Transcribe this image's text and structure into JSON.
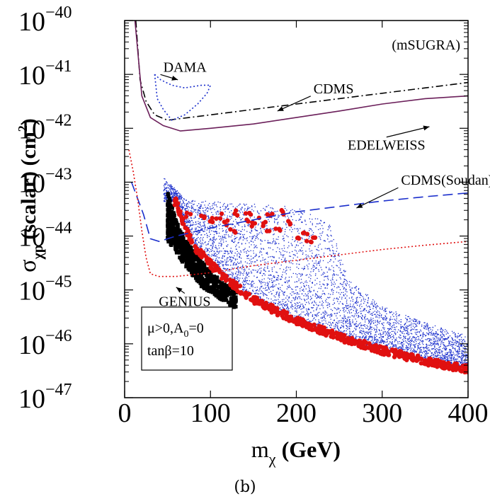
{
  "chart_data": {
    "type": "scatter",
    "panel_label": "(b)",
    "model_label": "(mSUGRA)",
    "xlabel": {
      "main": "m",
      "sub": "χ",
      "unit": " (GeV)"
    },
    "ylabel": {
      "main": "σ",
      "sub": "χp",
      "unit": " (scalar) (cm",
      "unit_sup": "2",
      "close": ")"
    },
    "xlim": [
      0,
      400
    ],
    "ylim_log10": [
      -47,
      -40
    ],
    "x_ticks": [
      0,
      100,
      200,
      300,
      400
    ],
    "x_tick_labels": [
      "0",
      "100",
      "200",
      "300",
      "400"
    ],
    "y_ticks": [
      -47,
      -46,
      -45,
      -44,
      -43,
      -42,
      -41,
      -40
    ],
    "y_tick_labels": [
      {
        "base": "10",
        "exp": "−47"
      },
      {
        "base": "10",
        "exp": "−46"
      },
      {
        "base": "10",
        "exp": "−45"
      },
      {
        "base": "10",
        "exp": "−44"
      },
      {
        "base": "10",
        "exp": "−43"
      },
      {
        "base": "10",
        "exp": "−42"
      },
      {
        "base": "10",
        "exp": "−41"
      },
      {
        "base": "10",
        "exp": "−40"
      }
    ],
    "legend_box": {
      "line1_mu": "μ>0,A",
      "line1_sub": "0",
      "line1_end": "=0",
      "line2": "tanβ=10"
    },
    "curves": [
      {
        "name": "CDMS",
        "color": "#000000",
        "dash": "dashdot",
        "points": [
          [
            13,
            -40.0
          ],
          [
            18,
            -41.1
          ],
          [
            25,
            -41.5
          ],
          [
            35,
            -41.75
          ],
          [
            50,
            -41.85
          ],
          [
            65,
            -41.82
          ],
          [
            100,
            -41.75
          ],
          [
            150,
            -41.65
          ],
          [
            200,
            -41.55
          ],
          [
            250,
            -41.45
          ],
          [
            300,
            -41.35
          ],
          [
            350,
            -41.25
          ],
          [
            400,
            -41.15
          ]
        ]
      },
      {
        "name": "EDELWEISS",
        "color": "#6b1f5a",
        "dash": "solid",
        "points": [
          [
            12,
            -40.0
          ],
          [
            20,
            -41.4
          ],
          [
            30,
            -41.8
          ],
          [
            45,
            -41.95
          ],
          [
            65,
            -42.05
          ],
          [
            100,
            -42.0
          ],
          [
            150,
            -41.92
          ],
          [
            200,
            -41.8
          ],
          [
            250,
            -41.68
          ],
          [
            300,
            -41.55
          ],
          [
            350,
            -41.45
          ],
          [
            400,
            -41.4
          ]
        ]
      },
      {
        "name": "CDMS(Soudan)",
        "color": "#1a2ecc",
        "dash": "longdash",
        "points": [
          [
            8,
            -43.0
          ],
          [
            15,
            -43.3
          ],
          [
            22,
            -43.6
          ],
          [
            30,
            -44.05
          ],
          [
            40,
            -44.1
          ],
          [
            60,
            -44.0
          ],
          [
            100,
            -43.85
          ],
          [
            150,
            -43.7
          ],
          [
            200,
            -43.55
          ],
          [
            250,
            -43.45
          ],
          [
            300,
            -43.35
          ],
          [
            350,
            -43.27
          ],
          [
            400,
            -43.2
          ]
        ]
      },
      {
        "name": "GENIUS",
        "color": "#e01010",
        "dash": "dotted",
        "points": [
          [
            5,
            -42.4
          ],
          [
            10,
            -42.8
          ],
          [
            15,
            -43.3
          ],
          [
            20,
            -43.9
          ],
          [
            25,
            -44.4
          ],
          [
            30,
            -44.7
          ],
          [
            40,
            -44.75
          ],
          [
            60,
            -44.75
          ],
          [
            100,
            -44.68
          ],
          [
            150,
            -44.55
          ],
          [
            200,
            -44.45
          ],
          [
            250,
            -44.35
          ],
          [
            300,
            -44.25
          ],
          [
            350,
            -44.17
          ],
          [
            400,
            -44.1
          ]
        ]
      }
    ],
    "dama_region": {
      "name": "DAMA",
      "color": "#1a2ecc",
      "points": [
        [
          35,
          -41.0
        ],
        [
          42,
          -41.1
        ],
        [
          55,
          -41.2
        ],
        [
          70,
          -41.25
        ],
        [
          90,
          -41.2
        ],
        [
          100,
          -41.2
        ],
        [
          96,
          -41.35
        ],
        [
          85,
          -41.55
        ],
        [
          70,
          -41.75
        ],
        [
          55,
          -41.85
        ],
        [
          45,
          -41.65
        ],
        [
          38,
          -41.45
        ],
        [
          35,
          -41.0
        ]
      ]
    },
    "scatter_blue": {
      "name": "blue points",
      "color": "#1a2ecc",
      "x_range": [
        45,
        400
      ],
      "upper_envelope": [
        [
          45,
          -42.9
        ],
        [
          70,
          -43.3
        ],
        [
          100,
          -43.35
        ],
        [
          150,
          -43.4
        ],
        [
          200,
          -43.45
        ],
        [
          240,
          -43.8
        ],
        [
          260,
          -44.8
        ],
        [
          300,
          -45.3
        ],
        [
          350,
          -45.6
        ],
        [
          400,
          -45.85
        ]
      ]
    },
    "scatter_black": {
      "name": "black points",
      "color": "#000000",
      "band": [
        [
          50,
          -43.15,
          -44.1
        ],
        [
          60,
          -43.7,
          -44.3
        ],
        [
          70,
          -44.05,
          -44.55
        ],
        [
          90,
          -44.45,
          -44.95
        ],
        [
          110,
          -44.8,
          -45.15
        ],
        [
          130,
          -45.05,
          -45.35
        ]
      ]
    },
    "scatter_red": {
      "name": "red points",
      "color": "#e01010",
      "lower_band": [
        [
          60,
          -43.4
        ],
        [
          70,
          -43.85
        ],
        [
          80,
          -44.2
        ],
        [
          100,
          -44.55
        ],
        [
          120,
          -44.85
        ],
        [
          150,
          -45.2
        ],
        [
          180,
          -45.45
        ],
        [
          200,
          -45.6
        ],
        [
          250,
          -45.9
        ],
        [
          300,
          -46.15
        ],
        [
          350,
          -46.35
        ],
        [
          400,
          -46.5
        ]
      ],
      "upper_cluster": [
        [
          75,
          -43.6
        ],
        [
          90,
          -43.65
        ],
        [
          100,
          -43.7
        ],
        [
          110,
          -43.62
        ],
        [
          120,
          -43.75
        ],
        [
          130,
          -43.58
        ],
        [
          140,
          -43.68
        ],
        [
          150,
          -43.8
        ],
        [
          160,
          -43.72
        ],
        [
          170,
          -43.64
        ],
        [
          180,
          -43.9
        ],
        [
          190,
          -43.76
        ],
        [
          200,
          -44.0
        ],
        [
          210,
          -43.95
        ],
        [
          220,
          -44.05
        ],
        [
          185,
          -43.58
        ],
        [
          165,
          -43.85
        ],
        [
          145,
          -43.55
        ],
        [
          125,
          -43.9
        ],
        [
          215,
          -44.1
        ]
      ]
    },
    "annotations": [
      {
        "text": "DAMA",
        "x": 45,
        "y": -40.95,
        "arrow_to": [
          62,
          -41.1
        ],
        "anchor": "start"
      },
      {
        "text": "CDMS",
        "x": 220,
        "y": -41.35,
        "arrow_to": [
          178,
          -41.68
        ],
        "anchor": "start"
      },
      {
        "text": "EDELWEISS",
        "x": 305,
        "y": -42.4,
        "arrow_to": [
          355,
          -41.97
        ],
        "anchor": "middle"
      },
      {
        "text": "CDMS(Soudan)",
        "x": 322,
        "y": -43.05,
        "arrow_to": [
          270,
          -43.48
        ],
        "anchor": "start"
      },
      {
        "text": "GENIUS",
        "x": 70,
        "y": -45.3,
        "arrow_to": [
          60,
          -44.95
        ],
        "anchor": "middle"
      }
    ]
  }
}
